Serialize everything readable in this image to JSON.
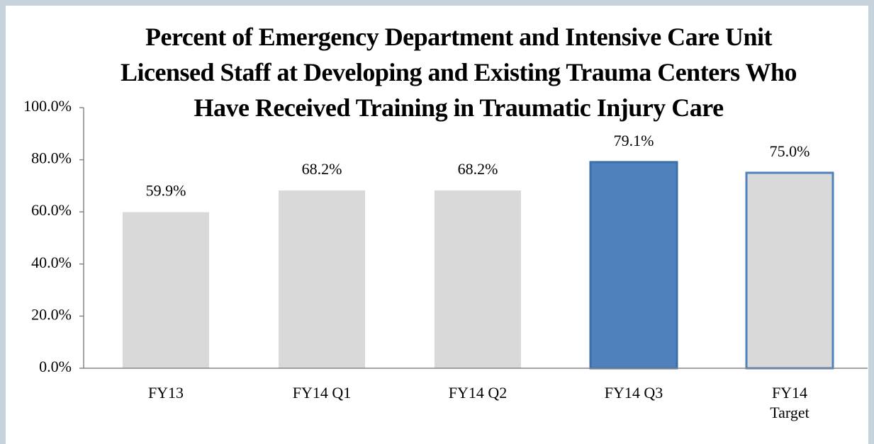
{
  "chart_data": {
    "type": "bar",
    "title": "Percent of Emergency Department and Intensive Care Unit Licensed Staff at Developing and Existing Trauma Centers Who Have Received Training in Traumatic Injury Care",
    "categories": [
      "FY13",
      "FY14 Q1",
      "FY14 Q2",
      "FY14 Q3",
      "FY14 Target"
    ],
    "values": [
      59.9,
      68.2,
      68.2,
      79.1,
      75.0
    ],
    "value_labels": [
      "59.9%",
      "68.2%",
      "68.2%",
      "79.1%",
      "75.0%"
    ],
    "colors": [
      "#d9d9d9",
      "#d9d9d9",
      "#d9d9d9",
      "#4f81bd",
      "#d9d9d9"
    ],
    "edgecolors": [
      "none",
      "none",
      "none",
      "#3c6ea8",
      "#4f81bd"
    ],
    "ylim": [
      0,
      100
    ],
    "yticks": [
      {
        "value": 0,
        "label": "0.0%"
      },
      {
        "value": 20,
        "label": "20.0%"
      },
      {
        "value": 40,
        "label": "40.0%"
      },
      {
        "value": 60,
        "label": "60.0%"
      },
      {
        "value": 80,
        "label": "80.0%"
      },
      {
        "value": 100,
        "label": "100.0%"
      }
    ],
    "grid": false
  }
}
